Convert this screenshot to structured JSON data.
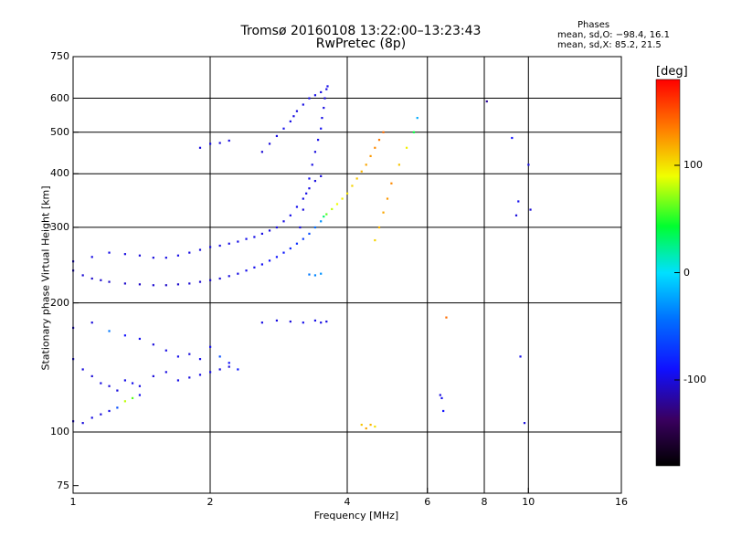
{
  "header": {
    "title_line1": "Tromsø 20160108 13:22:00–13:23:43",
    "title_line2": "RwPretec (8p)",
    "phases_heading": "Phases",
    "phases_o": "mean, sd,O: −98.4, 16.1",
    "phases_x": "mean, sd,X:  85.2, 21.5"
  },
  "colorbar": {
    "unit": "[deg]",
    "ticks": [
      "100",
      "0",
      "-100"
    ],
    "tick_values": [
      100,
      0,
      -100
    ],
    "range": [
      -180,
      180
    ]
  },
  "chart_data": {
    "type": "scatter",
    "xlabel": "Frequency [MHz]",
    "ylabel": "Stationary phase Virtual Height [km]",
    "x_scale": "log",
    "y_scale": "log",
    "xlim": [
      1,
      16
    ],
    "ylim": [
      72,
      750
    ],
    "x_ticks": [
      1,
      2,
      4,
      6,
      8,
      10,
      16
    ],
    "x_tick_labels": [
      "1",
      "2",
      "4",
      "6",
      "8",
      "10",
      "16"
    ],
    "y_ticks": [
      75,
      100,
      200,
      300,
      400,
      500,
      600,
      750
    ],
    "y_tick_labels": [
      "75",
      "100",
      "200",
      "300",
      "400",
      "500",
      "600",
      "750"
    ],
    "grid_x": [
      2,
      4,
      6,
      8,
      10
    ],
    "grid_y": [
      100,
      200,
      300,
      400,
      500,
      600
    ],
    "color_quantity": "phase",
    "color_unit": "deg",
    "series": [
      {
        "x": [
          1.0,
          1.05,
          1.1,
          1.15,
          1.2,
          1.3,
          1.4,
          1.5,
          1.6,
          1.7,
          1.8,
          1.9,
          2.0,
          2.1,
          2.2,
          2.3,
          2.4,
          2.5,
          2.6,
          2.7,
          2.8,
          2.9,
          3.0,
          3.1,
          3.2,
          3.3,
          3.4,
          3.5,
          3.55,
          3.6,
          3.7,
          3.8,
          3.9,
          4.0,
          4.1,
          4.2,
          4.3,
          4.4,
          4.5,
          4.6,
          4.7,
          4.8
        ],
        "y": [
          238,
          232,
          228,
          226,
          224,
          222,
          221,
          220,
          220,
          221,
          222,
          224,
          226,
          228,
          231,
          234,
          238,
          242,
          246,
          251,
          256,
          262,
          268,
          275,
          282,
          290,
          300,
          310,
          318,
          322,
          331,
          340,
          350,
          360,
          375,
          390,
          405,
          420,
          440,
          460,
          480,
          500
        ],
        "phase": [
          -105,
          -103,
          -105,
          -104,
          -106,
          -105,
          -107,
          -104,
          -106,
          -105,
          -103,
          -104,
          -105,
          -102,
          -100,
          -98,
          -96,
          -95,
          -93,
          -90,
          -88,
          -85,
          -80,
          -75,
          -70,
          -60,
          -45,
          -30,
          30,
          60,
          80,
          90,
          95,
          100,
          105,
          110,
          115,
          120,
          125,
          130,
          135,
          140
        ]
      },
      {
        "x": [
          1.0,
          1.1,
          1.2,
          1.3,
          1.4,
          1.5,
          1.6,
          1.7,
          1.8,
          1.9,
          2.0,
          2.1,
          2.2,
          2.3,
          2.4,
          2.5,
          2.6,
          2.7,
          2.8,
          2.9,
          3.0,
          3.1,
          3.2,
          3.3,
          3.4,
          3.5
        ],
        "y": [
          250,
          256,
          262,
          260,
          258,
          255,
          255,
          258,
          262,
          266,
          270,
          272,
          275,
          278,
          282,
          285,
          290,
          295,
          300,
          310,
          320,
          335,
          350,
          370,
          385,
          395
        ],
        "phase": [
          -100,
          -98,
          -97,
          -99,
          -101,
          -100,
          -98,
          -97,
          -99,
          -100,
          -101,
          -99,
          -98,
          -97,
          -96,
          -97,
          -98,
          -100,
          -99,
          -98,
          -96,
          -95,
          -97,
          -98,
          -99,
          -100
        ]
      },
      {
        "x": [
          3.15,
          3.2,
          3.25,
          3.3,
          3.35,
          3.4,
          3.45,
          3.5,
          3.52,
          3.55,
          3.57,
          3.6,
          3.62
        ],
        "y": [
          300,
          330,
          360,
          390,
          420,
          450,
          480,
          510,
          540,
          570,
          600,
          630,
          640
        ],
        "phase": [
          -98,
          -100,
          -97,
          -95,
          -98,
          -100,
          -96,
          -94,
          -97,
          -99,
          -101,
          -98,
          -96
        ]
      },
      {
        "x": [
          2.6,
          2.7,
          2.8,
          2.9,
          3.0,
          3.05,
          3.1,
          3.2,
          3.3,
          3.4,
          3.5
        ],
        "y": [
          450,
          470,
          490,
          510,
          530,
          545,
          560,
          580,
          600,
          610,
          620
        ],
        "phase": [
          -102,
          -100,
          -98,
          -96,
          -97,
          -99,
          -100,
          -98,
          -96,
          -97,
          -99
        ]
      },
      {
        "x": [
          1.9,
          2.0,
          2.1,
          2.2
        ],
        "y": [
          460,
          470,
          472,
          478
        ],
        "phase": [
          -100,
          -98,
          -101,
          -99
        ]
      },
      {
        "x": [
          4.6,
          4.7,
          4.8,
          4.9,
          5.0,
          5.2,
          5.4,
          5.6,
          5.7
        ],
        "y": [
          280,
          300,
          325,
          350,
          380,
          420,
          460,
          500,
          540
        ],
        "phase": [
          105,
          115,
          120,
          125,
          130,
          110,
          95,
          40,
          -20
        ]
      },
      {
        "x": [
          1.0,
          1.1,
          1.2,
          1.3,
          1.4,
          1.5,
          1.6,
          1.7,
          1.8,
          1.9,
          2.0,
          2.1,
          2.2,
          2.3
        ],
        "y": [
          175,
          180,
          172,
          168,
          165,
          160,
          155,
          150,
          152,
          148,
          158,
          150,
          145,
          140
        ],
        "phase": [
          -102,
          -100,
          -40,
          -90,
          -95,
          -100,
          -98,
          -96,
          -100,
          -97,
          -95,
          -60,
          -90,
          -85
        ]
      },
      {
        "x": [
          1.0,
          1.05,
          1.1,
          1.15,
          1.2,
          1.25,
          1.3,
          1.35,
          1.4,
          1.5,
          1.6,
          1.7,
          1.8,
          1.9,
          2.0,
          2.1,
          2.2
        ],
        "y": [
          148,
          140,
          135,
          130,
          128,
          125,
          132,
          130,
          128,
          135,
          138,
          132,
          134,
          136,
          138,
          140,
          142
        ],
        "phase": [
          -98,
          -100,
          -102,
          -99,
          -101,
          -100,
          -97,
          -95,
          -98,
          -101,
          -99,
          -97,
          -100,
          -98,
          -96,
          -99,
          -101
        ]
      },
      {
        "x": [
          1.0,
          1.05,
          1.1,
          1.15,
          1.2,
          1.25,
          1.3,
          1.35,
          1.4
        ],
        "y": [
          106,
          105,
          108,
          110,
          112,
          114,
          118,
          120,
          122
        ],
        "phase": [
          -102,
          -100,
          -98,
          -100,
          -97,
          -60,
          80,
          60,
          -95
        ]
      },
      {
        "x": [
          2.6,
          2.8,
          3.0,
          3.2,
          3.4,
          3.5,
          3.6
        ],
        "y": [
          180,
          182,
          181,
          180,
          182,
          180,
          181
        ],
        "phase": [
          -98,
          -99,
          -100,
          -96,
          -97,
          -98,
          -99
        ]
      },
      {
        "x": [
          3.3,
          3.4,
          3.5
        ],
        "y": [
          233,
          232,
          234
        ],
        "phase": [
          -40,
          -35,
          -30
        ]
      },
      {
        "x": [
          4.3,
          4.4,
          4.5,
          4.6
        ],
        "y": [
          104,
          102,
          104,
          103
        ],
        "phase": [
          110,
          120,
          115,
          100
        ]
      },
      {
        "x": [
          6.4,
          6.45,
          6.5,
          6.6
        ],
        "y": [
          122,
          120,
          112,
          185
        ],
        "phase": [
          -100,
          -95,
          -90,
          140
        ]
      },
      {
        "x": [
          8.1,
          9.2,
          9.4,
          9.5,
          9.6,
          9.8,
          10.0,
          10.1
        ],
        "y": [
          590,
          485,
          320,
          345,
          150,
          105,
          420,
          330
        ],
        "phase": [
          -120,
          -90,
          -100,
          -95,
          -96,
          -100,
          -98,
          -102
        ]
      }
    ]
  }
}
